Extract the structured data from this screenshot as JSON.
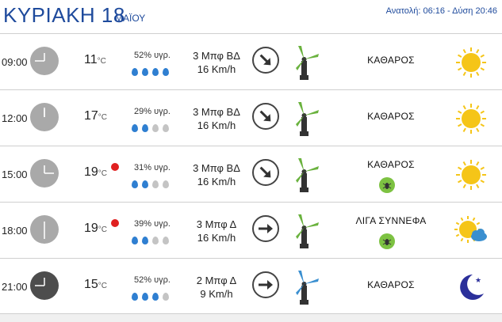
{
  "header": {
    "day": "ΚΥΡΙΑΚΗ 18",
    "month": "ΜΑΪΟΥ",
    "sun_times": "Ανατολή: 06:16  - Δύση 20:46"
  },
  "rows": [
    {
      "time": "09:00",
      "temp": "11",
      "unit": "°C",
      "humidity": "52% υγρ.",
      "drops_filled": 4,
      "wind_force": "3 Μπφ ΒΔ",
      "wind_speed": "16 Km/h",
      "wind_dir": "NW",
      "condition": "ΚΑΘΑΡΟΣ",
      "insect": false,
      "icon": "sun-icon",
      "hot": false,
      "clock": "clock-icon"
    },
    {
      "time": "12:00",
      "temp": "17",
      "unit": "°C",
      "humidity": "29% υγρ.",
      "drops_filled": 2,
      "wind_force": "3 Μπφ ΒΔ",
      "wind_speed": "16 Km/h",
      "wind_dir": "NW",
      "condition": "ΚΑΘΑΡΟΣ",
      "insect": false,
      "icon": "sun-icon",
      "hot": false,
      "clock": "clock-icon"
    },
    {
      "time": "15:00",
      "temp": "19",
      "unit": "°C",
      "humidity": "31% υγρ.",
      "drops_filled": 2,
      "wind_force": "3 Μπφ ΒΔ",
      "wind_speed": "16 Km/h",
      "wind_dir": "NW",
      "condition": "ΚΑΘΑΡΟΣ",
      "insect": true,
      "icon": "sun-icon",
      "hot": true,
      "clock": "clock-icon"
    },
    {
      "time": "18:00",
      "temp": "19",
      "unit": "°C",
      "humidity": "39% υγρ.",
      "drops_filled": 2,
      "wind_force": "3 Μπφ Δ",
      "wind_speed": "16 Km/h",
      "wind_dir": "W",
      "condition": "ΛΙΓΑ ΣΥΝΝΕΦΑ",
      "insect": true,
      "icon": "sun-cloud-icon",
      "hot": true,
      "clock": "clock-icon"
    },
    {
      "time": "21:00",
      "temp": "15",
      "unit": "°C",
      "humidity": "52% υγρ.",
      "drops_filled": 3,
      "wind_force": "2 Μπφ Δ",
      "wind_speed": "9 Km/h",
      "wind_dir": "W",
      "condition": "ΚΑΘΑΡΟΣ",
      "insect": false,
      "icon": "moon-icon",
      "hot": false,
      "clock": "clock-night-icon"
    }
  ],
  "colors": {
    "title": "#1e4a9c",
    "drop_full": "#2f7fd1",
    "drop_empty": "#c4c4c4",
    "hot_dot": "#e02020",
    "turbine_green": "#6ab23e",
    "turbine_blue": "#3a8fd0",
    "sun": "#f5c518",
    "moon": "#2b2f9a"
  }
}
